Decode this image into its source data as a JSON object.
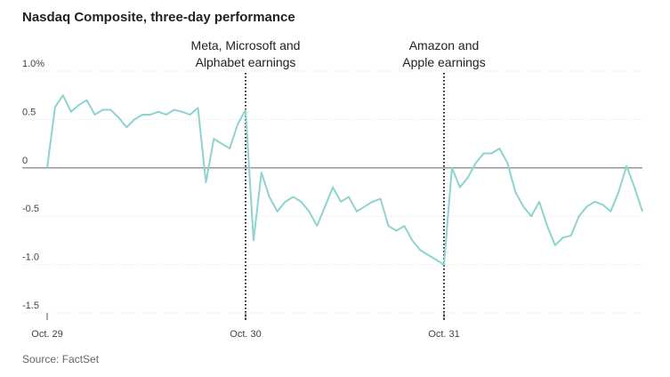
{
  "chart_data": {
    "type": "line",
    "title": "Nasdaq Composite, three-day performance",
    "source": "Source: FactSet",
    "x": [
      0,
      0.04,
      0.08,
      0.12,
      0.16,
      0.2,
      0.24,
      0.28,
      0.32,
      0.36,
      0.4,
      0.44,
      0.48,
      0.52,
      0.56,
      0.6,
      0.64,
      0.68,
      0.72,
      0.76,
      0.8,
      0.84,
      0.88,
      0.92,
      0.96,
      1,
      1.04,
      1.08,
      1.12,
      1.16,
      1.2,
      1.24,
      1.28,
      1.32,
      1.36,
      1.4,
      1.44,
      1.48,
      1.52,
      1.56,
      1.6,
      1.64,
      1.68,
      1.72,
      1.76,
      1.8,
      1.84,
      1.88,
      1.92,
      1.96,
      2,
      2.04,
      2.08,
      2.12,
      2.16,
      2.2,
      2.24,
      2.28,
      2.32,
      2.36,
      2.4,
      2.44,
      2.48,
      2.52,
      2.56,
      2.6,
      2.64,
      2.68,
      2.72,
      2.76,
      2.8,
      2.84,
      2.88,
      2.92,
      2.96,
      3
    ],
    "series": [
      {
        "name": "Nasdaq Composite",
        "color": "#8fd3d0",
        "values": [
          0,
          0.63,
          0.75,
          0.58,
          0.65,
          0.7,
          0.55,
          0.6,
          0.6,
          0.52,
          0.42,
          0.5,
          0.55,
          0.55,
          0.58,
          0.55,
          0.6,
          0.58,
          0.55,
          0.62,
          -0.15,
          0.3,
          0.25,
          0.2,
          0.45,
          0.6,
          -0.75,
          -0.05,
          -0.3,
          -0.45,
          -0.35,
          -0.3,
          -0.35,
          -0.45,
          -0.6,
          -0.4,
          -0.2,
          -0.35,
          -0.3,
          -0.45,
          -0.4,
          -0.35,
          -0.32,
          -0.6,
          -0.65,
          -0.6,
          -0.75,
          -0.85,
          -0.9,
          -0.95,
          -1.0,
          0.0,
          -0.2,
          -0.1,
          0.05,
          0.15,
          0.15,
          0.2,
          0.05,
          -0.25,
          -0.4,
          -0.5,
          -0.35,
          -0.6,
          -0.8,
          -0.72,
          -0.7,
          -0.5,
          -0.4,
          -0.35,
          -0.38,
          -0.45,
          -0.25,
          0.02,
          -0.2,
          -0.45
        ]
      }
    ],
    "xlim": [
      0,
      3
    ],
    "xticks": [
      {
        "value": 0,
        "label": "Oct. 29"
      },
      {
        "value": 1,
        "label": "Oct. 30"
      },
      {
        "value": 2,
        "label": "Oct. 31"
      }
    ],
    "ylim": [
      -1.5,
      1
    ],
    "yticks": [
      {
        "value": 1,
        "label": "1.0%"
      },
      0.5,
      0,
      -0.5,
      {
        "value": -1,
        "label": "-1.0"
      },
      -1.5
    ],
    "grid": true,
    "annotations": [
      {
        "x": 1,
        "text": [
          "Meta, Microsoft and",
          "Alphabet earnings"
        ]
      },
      {
        "x": 2,
        "text": [
          "Amazon and",
          "Apple earnings"
        ]
      }
    ]
  }
}
